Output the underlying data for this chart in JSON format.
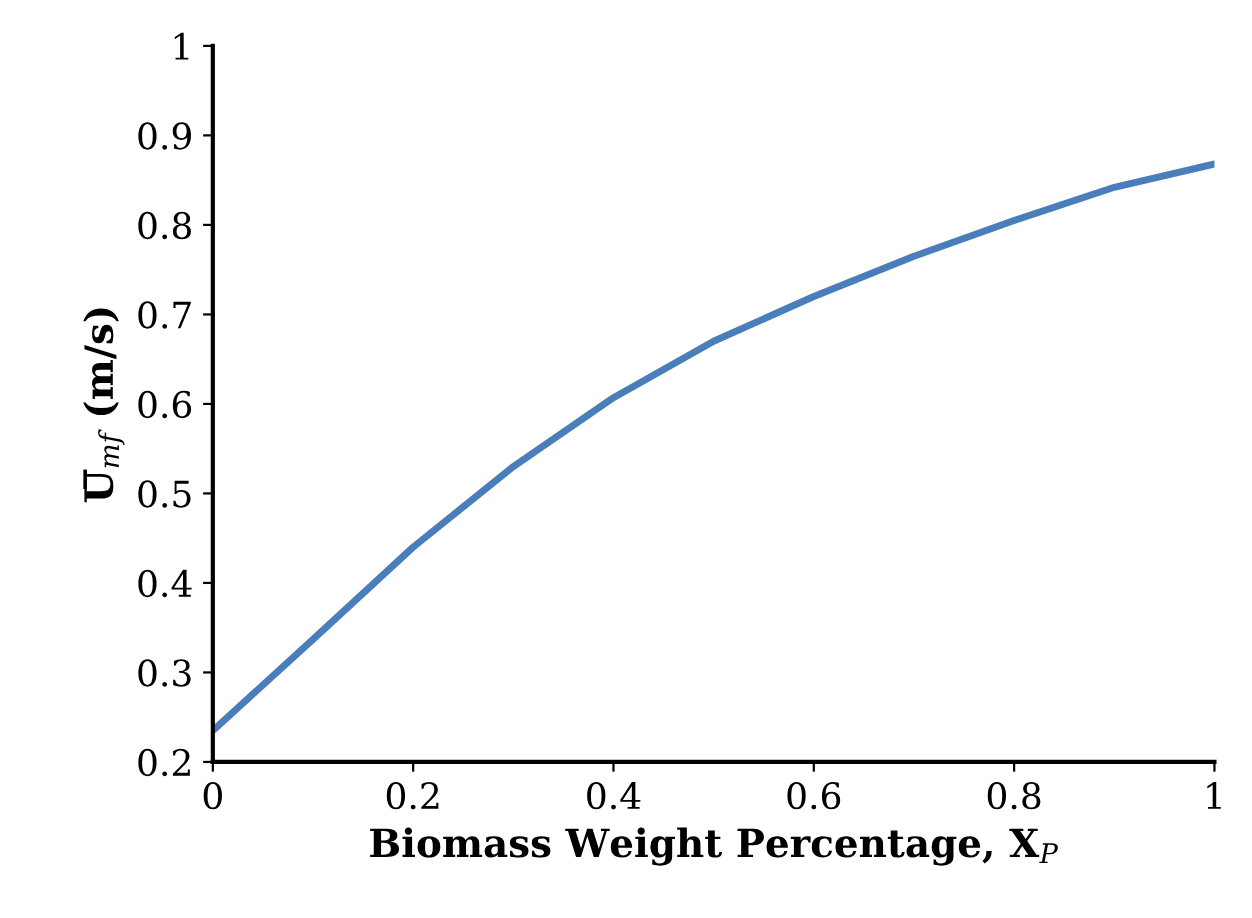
{
  "chart_data": {
    "type": "line",
    "xlabel": "Biomass Weight Percentage, X$_{P}$",
    "ylabel": "U̅$_{mf}$ (m/s)",
    "x": [
      0,
      0.1,
      0.2,
      0.3,
      0.4,
      0.5,
      0.6,
      0.7,
      0.8,
      0.9,
      1.0
    ],
    "series": [
      {
        "color": "#4a7ebb",
        "values": [
          0.235,
          0.337,
          0.44,
          0.53,
          0.607,
          0.67,
          0.72,
          0.765,
          0.805,
          0.842,
          0.868
        ]
      }
    ],
    "xlim": [
      0,
      1
    ],
    "xticks": [
      0,
      0.2,
      0.4,
      0.6,
      0.8,
      1
    ],
    "ylim": [
      0.2,
      1
    ],
    "yticks": [
      0.2,
      0.3,
      0.4,
      0.5,
      0.6,
      0.7,
      0.8,
      0.9,
      1
    ],
    "grid": false,
    "legend": false,
    "marker": "none",
    "line_style": "solid"
  }
}
